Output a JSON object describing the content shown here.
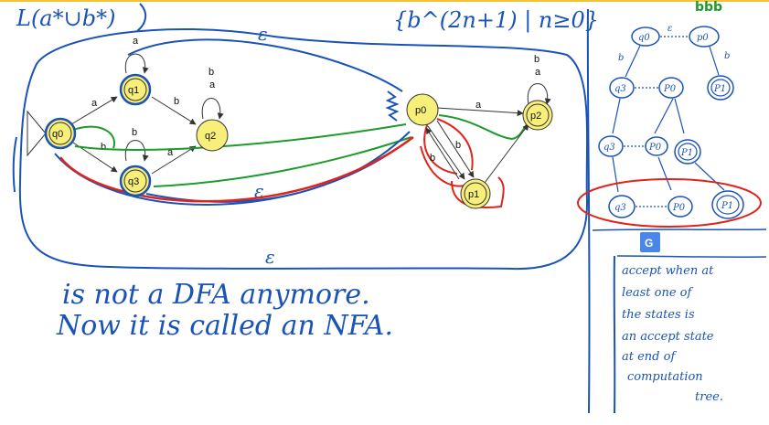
{
  "header": {
    "language_left": "L(a*∪b*)",
    "language_right": "{b^(2n+1) | n≥0}",
    "top_right": "bbb"
  },
  "nfa_left": {
    "states": [
      "q0",
      "q1",
      "q2",
      "q3"
    ],
    "edge_labels": {
      "q0_q1": "a",
      "q1_loop": "a",
      "q1_q2": "b",
      "q2_loop": "b",
      "q2_loop2": "a",
      "q0_q3": "b",
      "q3_loop": "b",
      "q3_q2": "a"
    }
  },
  "nfa_right": {
    "states": [
      "p0",
      "p1",
      "p2"
    ],
    "edge_labels": {
      "p0_p2": "a",
      "p2_loop": "b",
      "p2_loop2": "a",
      "p0_p1_a": "b",
      "p0_p1_b": "b"
    }
  },
  "epsilon_labels": {
    "top": "ε",
    "middle": "ε",
    "bottom": "ε"
  },
  "notes": {
    "line1": "is not a DFA anymore.",
    "line2": "Now it is called an NFA."
  },
  "tree": {
    "root": [
      "q0",
      "p0"
    ],
    "level1": [
      "q3",
      "P0",
      "P1"
    ],
    "level2": [
      "q3",
      "P0",
      "P1"
    ],
    "level3": [
      "q3",
      "P0",
      "P1"
    ],
    "edge_symbols": [
      "ε",
      "b",
      "b"
    ]
  },
  "accept_note": {
    "line1": "accept when at",
    "line2": "least one of",
    "line3": "the states is",
    "line4": "an accept state",
    "line5": "at end of",
    "line6": "computation",
    "line7": "tree."
  },
  "colors": {
    "ink_blue": "#1a53b8",
    "ink_green": "#1d9a2a",
    "ink_red": "#e0241b",
    "state_fill": "#f7ef7a",
    "translate_badge": "#4a86e8"
  }
}
